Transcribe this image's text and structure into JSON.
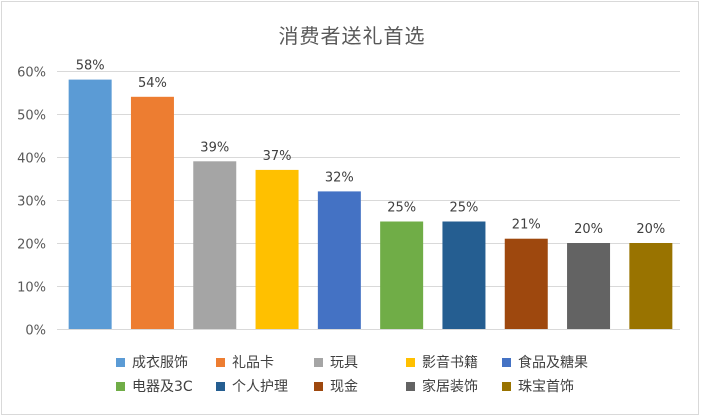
{
  "chart_data": {
    "type": "bar",
    "title": "消费者送礼首选",
    "categories": [
      "成衣服饰",
      "礼品卡",
      "玩具",
      "影音书籍",
      "食品及糖果",
      "电器及3C",
      "个人护理",
      "现金",
      "家居装饰",
      "珠宝首饰"
    ],
    "values": [
      58,
      54,
      39,
      37,
      32,
      25,
      25,
      21,
      20,
      20
    ],
    "data_labels": [
      "58%",
      "54%",
      "39%",
      "37%",
      "32%",
      "25%",
      "25%",
      "21%",
      "20%",
      "20%"
    ],
    "colors": [
      "#5b9bd5",
      "#ed7d31",
      "#a5a5a5",
      "#ffc000",
      "#4472c4",
      "#70ad47",
      "#255e91",
      "#9e480e",
      "#636363",
      "#997300"
    ],
    "ylim": [
      0,
      60
    ],
    "yticks": [
      0,
      10,
      20,
      30,
      40,
      50,
      60
    ],
    "ytick_labels": [
      "0%",
      "10%",
      "20%",
      "30%",
      "40%",
      "50%",
      "60%"
    ],
    "xlabel": "",
    "ylabel": "",
    "grid": true,
    "legend": {
      "placement": "bottom",
      "rows": [
        [
          "成衣服饰",
          "礼品卡",
          "玩具",
          "影音书籍",
          "食品及糖果"
        ],
        [
          "电器及3C",
          "个人护理",
          "现金",
          "家居装饰",
          "珠宝首饰"
        ]
      ]
    }
  }
}
